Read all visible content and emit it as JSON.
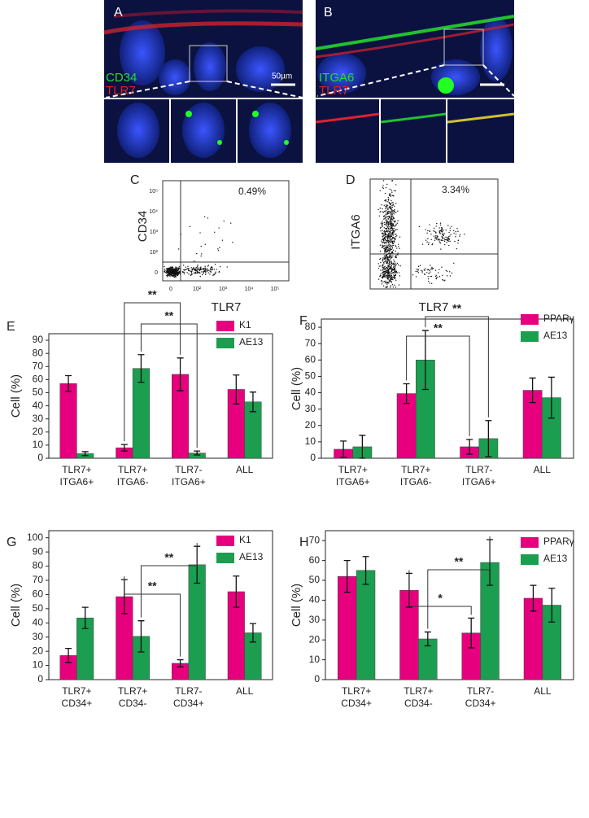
{
  "panels": {
    "A": {
      "letter": "A",
      "labels": [
        "CD34",
        "TLR7"
      ],
      "scale_bar": "50µm"
    },
    "B": {
      "letter": "B",
      "labels": [
        "ITGA6",
        "TLR7"
      ]
    }
  },
  "flow": [
    {
      "letter": "C",
      "x_label": "TLR7",
      "y_label": "CD34",
      "percent": "0.49%",
      "xticks": [
        "0",
        "10²",
        "10³",
        "10⁴",
        "10⁵"
      ],
      "yticks": [
        "0",
        "10²",
        "10³",
        "10⁴",
        "10⁵"
      ]
    },
    {
      "letter": "D",
      "x_label": "TLR7",
      "y_label": "ITGA6",
      "percent": "3.34%"
    }
  ],
  "chart_data": [
    {
      "type": "bar",
      "panel_label": "E",
      "y_label": "Cell (%)",
      "categories": [
        "TLR7+\nITGA6+",
        "TLR7+\nITGA6-",
        "TLR7-\nITGA6+",
        "ALL"
      ],
      "series": [
        {
          "name": "K1",
          "color": "#e6007e",
          "values": [
            57,
            8,
            64,
            52.5
          ],
          "errors": [
            6,
            2.5,
            12.5,
            11
          ]
        },
        {
          "name": "AE13",
          "color": "#1b9e4f",
          "values": [
            3.5,
            68.5,
            4,
            43
          ],
          "errors": [
            1.5,
            10.5,
            1.5,
            7.5
          ]
        }
      ],
      "ylim": [
        0,
        95
      ],
      "yticks": [
        0,
        10,
        20,
        30,
        40,
        50,
        60,
        70,
        80,
        90
      ],
      "annotations": [
        "**",
        "**"
      ]
    },
    {
      "type": "bar",
      "panel_label": "F",
      "y_label": "Cell (%)",
      "categories": [
        "TLR7+\nITGA6+",
        "TLR7+\nITGA6-",
        "TLR7-\nITGA6+",
        "ALL"
      ],
      "series": [
        {
          "name": "PPARγ",
          "color": "#e6007e",
          "values": [
            5.5,
            39.5,
            7,
            41.5
          ],
          "errors": [
            5,
            6,
            4.5,
            7.5
          ]
        },
        {
          "name": "AE13",
          "color": "#1b9e4f",
          "values": [
            7,
            60,
            12,
            37
          ],
          "errors": [
            7,
            18,
            11,
            12.5
          ]
        }
      ],
      "ylim": [
        0,
        85
      ],
      "yticks": [
        0,
        10,
        20,
        30,
        40,
        50,
        60,
        70,
        80
      ],
      "annotations": [
        "**",
        "**"
      ]
    },
    {
      "type": "bar",
      "panel_label": "G",
      "y_label": "Cell (%)",
      "categories": [
        "TLR7+\nCD34+",
        "TLR7+\nCD34-",
        "TLR7-\nCD34+",
        "ALL"
      ],
      "series": [
        {
          "name": "K1",
          "color": "#e6007e",
          "values": [
            17,
            58.5,
            11.5,
            62
          ],
          "errors": [
            5,
            12,
            2.5,
            11
          ]
        },
        {
          "name": "AE13",
          "color": "#1b9e4f",
          "values": [
            43.5,
            30.5,
            81,
            33
          ],
          "errors": [
            7.5,
            11,
            13,
            6.5
          ]
        }
      ],
      "ylim": [
        0,
        105
      ],
      "yticks": [
        0,
        10,
        20,
        30,
        40,
        50,
        60,
        70,
        80,
        90,
        100
      ],
      "annotations": [
        "**",
        "**"
      ]
    },
    {
      "type": "bar",
      "panel_label": "H",
      "y_label": "Cell (%)",
      "categories": [
        "TLR7+\nCD34+",
        "TLR7+\nCD34-",
        "TLR7-\nCD34+",
        "ALL"
      ],
      "series": [
        {
          "name": "PPARγ",
          "color": "#e6007e",
          "values": [
            52,
            45,
            23.5,
            41
          ],
          "errors": [
            8,
            8.5,
            7.5,
            6.5
          ]
        },
        {
          "name": "AE13",
          "color": "#1b9e4f",
          "values": [
            55,
            20.5,
            59,
            37.5
          ],
          "errors": [
            7,
            3.5,
            11.5,
            8.5
          ]
        }
      ],
      "ylim": [
        0,
        75
      ],
      "yticks": [
        0,
        10,
        20,
        30,
        40,
        50,
        60,
        70
      ],
      "annotations": [
        "**",
        "*"
      ]
    }
  ]
}
